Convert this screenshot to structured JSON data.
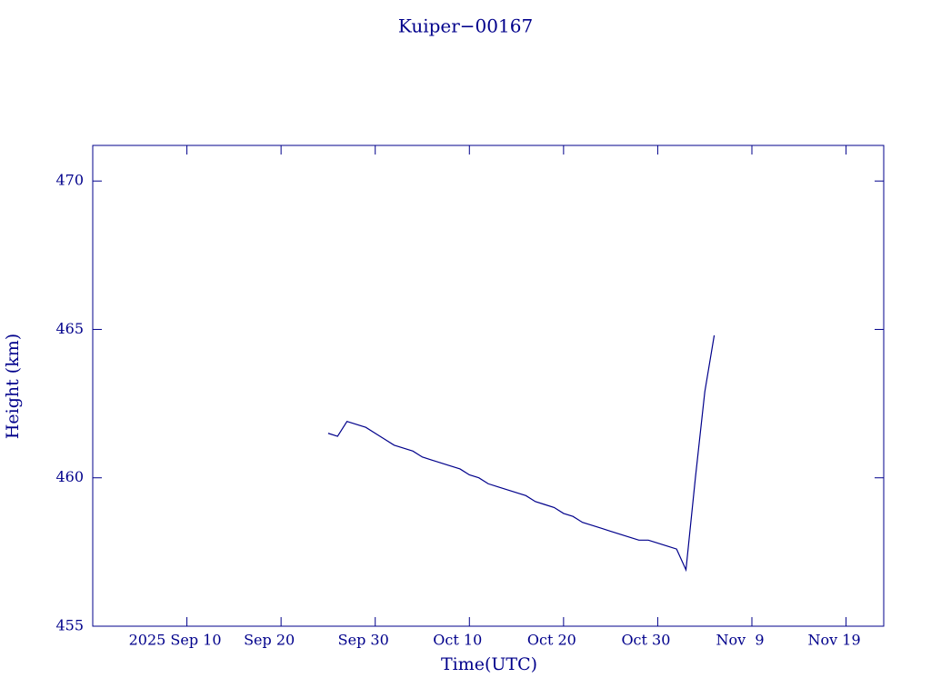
{
  "chart_data": {
    "type": "line",
    "title": "Kuiper−00167",
    "xlabel": "Time(UTC)",
    "ylabel": "Height (km)",
    "x": [
      "2025-09-25",
      "2025-09-26",
      "2025-09-27",
      "2025-09-28",
      "2025-09-29",
      "2025-09-30",
      "2025-10-01",
      "2025-10-02",
      "2025-10-03",
      "2025-10-04",
      "2025-10-05",
      "2025-10-06",
      "2025-10-07",
      "2025-10-08",
      "2025-10-09",
      "2025-10-10",
      "2025-10-11",
      "2025-10-12",
      "2025-10-13",
      "2025-10-14",
      "2025-10-15",
      "2025-10-16",
      "2025-10-17",
      "2025-10-18",
      "2025-10-19",
      "2025-10-20",
      "2025-10-21",
      "2025-10-22",
      "2025-10-23",
      "2025-10-24",
      "2025-10-25",
      "2025-10-26",
      "2025-10-27",
      "2025-10-28",
      "2025-10-29",
      "2025-10-30",
      "2025-10-31",
      "2025-11-01",
      "2025-11-02",
      "2025-11-03",
      "2025-11-04",
      "2025-11-05"
    ],
    "series": [
      {
        "name": "Height",
        "color": "#00008b",
        "values": [
          461.5,
          461.4,
          461.9,
          461.8,
          461.7,
          461.5,
          461.3,
          461.1,
          461.0,
          460.9,
          460.7,
          460.6,
          460.5,
          460.4,
          460.3,
          460.1,
          460.0,
          459.8,
          459.7,
          459.6,
          459.5,
          459.4,
          459.2,
          459.1,
          459.0,
          458.8,
          458.7,
          458.5,
          458.4,
          458.3,
          458.2,
          458.1,
          458.0,
          457.9,
          457.9,
          457.8,
          457.7,
          457.6,
          456.9,
          460.0,
          462.9,
          464.8
        ]
      }
    ],
    "xlim": [
      "2025-08-31",
      "2025-11-23"
    ],
    "xticks": [
      {
        "value": "2025-09-10",
        "label": "2025 Sep 10"
      },
      {
        "value": "2025-09-20",
        "label": "Sep 20"
      },
      {
        "value": "2025-09-30",
        "label": "Sep 30"
      },
      {
        "value": "2025-10-10",
        "label": "Oct 10"
      },
      {
        "value": "2025-10-20",
        "label": "Oct 20"
      },
      {
        "value": "2025-10-30",
        "label": "Oct 30"
      },
      {
        "value": "2025-11-09",
        "label": "Nov  9"
      },
      {
        "value": "2025-11-19",
        "label": "Nov 19"
      }
    ],
    "ylim": [
      455,
      471.2
    ],
    "yticks": [
      455,
      460,
      465,
      470
    ],
    "grid": false
  }
}
